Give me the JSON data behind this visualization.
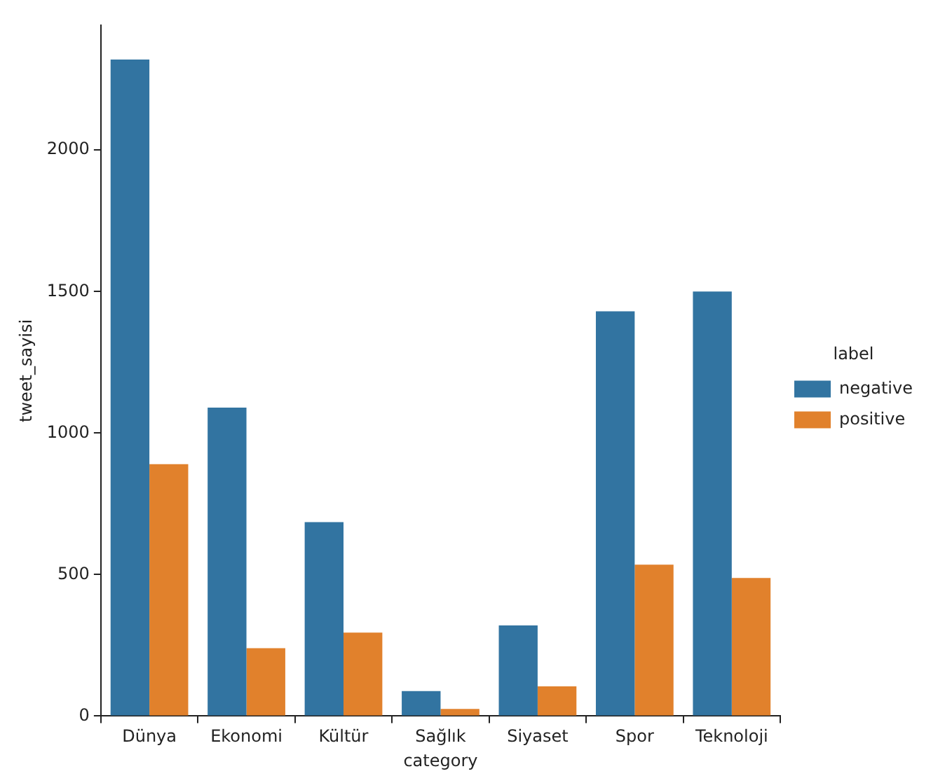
{
  "chart_data": {
    "type": "bar",
    "xlabel": "category",
    "ylabel": "tweet_sayisi",
    "legend_title": "label",
    "legend": "right",
    "grid": false,
    "categories": [
      "Dünya",
      "Ekonomi",
      "Kültür",
      "Sağlık",
      "Siyaset",
      "Spor",
      "Teknoloji"
    ],
    "series": [
      {
        "name": "negative",
        "color": "#3274a1",
        "values": [
          2320,
          1090,
          685,
          88,
          320,
          1430,
          1500
        ]
      },
      {
        "name": "positive",
        "color": "#e1812c",
        "values": [
          890,
          240,
          295,
          25,
          105,
          535,
          488
        ]
      }
    ],
    "ylim": [
      0,
      2440
    ],
    "yticks": [
      0,
      500,
      1000,
      1500,
      2000
    ]
  }
}
